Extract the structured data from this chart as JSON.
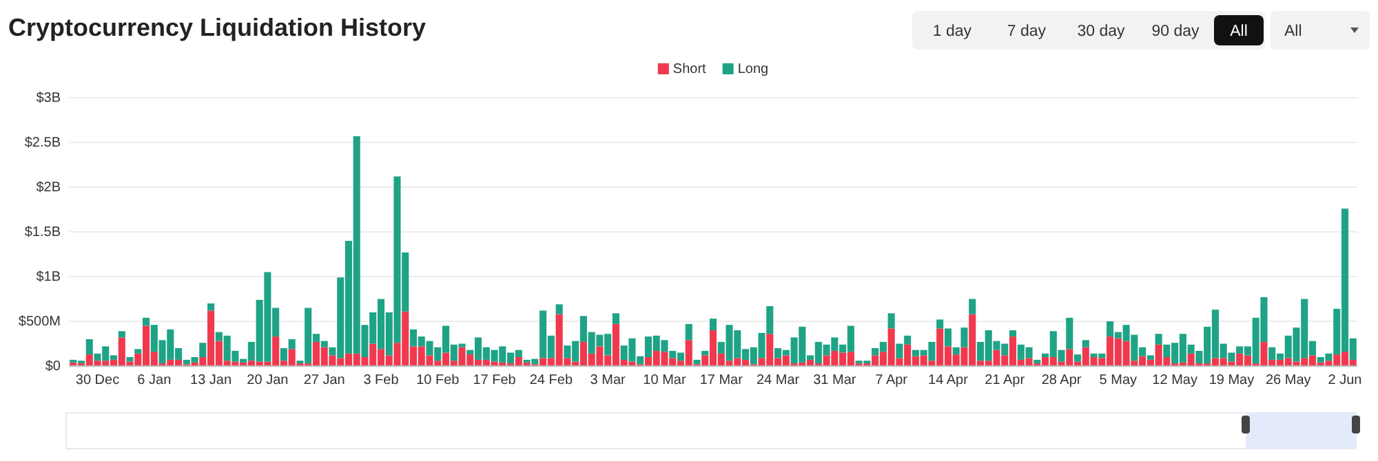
{
  "chart_data": {
    "type": "bar",
    "title": "Cryptocurrency Liquidation History",
    "stacked": true,
    "categories": [
      null,
      null,
      null,
      "30 Dec",
      null,
      null,
      null,
      null,
      null,
      null,
      "6 Jan",
      null,
      null,
      null,
      null,
      null,
      null,
      "13 Jan",
      null,
      null,
      null,
      null,
      null,
      null,
      "20 Jan",
      null,
      null,
      null,
      null,
      null,
      null,
      "27 Jan",
      null,
      null,
      null,
      null,
      null,
      null,
      "3 Feb",
      null,
      null,
      null,
      null,
      null,
      null,
      "10 Feb",
      null,
      null,
      null,
      null,
      null,
      null,
      "17 Feb",
      null,
      null,
      null,
      null,
      null,
      null,
      "24 Feb",
      null,
      null,
      null,
      null,
      null,
      null,
      "3 Mar",
      null,
      null,
      null,
      null,
      null,
      null,
      "10 Mar",
      null,
      null,
      null,
      null,
      null,
      null,
      "17 Mar",
      null,
      null,
      null,
      null,
      null,
      null,
      "24 Mar",
      null,
      null,
      null,
      null,
      null,
      null,
      "31 Mar",
      null,
      null,
      null,
      null,
      null,
      null,
      "7 Apr",
      null,
      null,
      null,
      null,
      null,
      null,
      "14 Apr",
      null,
      null,
      null,
      null,
      null,
      null,
      "21 Apr",
      null,
      null,
      null,
      null,
      null,
      null,
      "28 Apr",
      null,
      null,
      null,
      null,
      null,
      null,
      "5 May",
      null,
      null,
      null,
      null,
      null,
      null,
      "12 May",
      null,
      null,
      null,
      null,
      null,
      null,
      "19 May",
      null,
      null,
      null,
      null,
      null,
      null,
      "26 May",
      null,
      null,
      null,
      null,
      null,
      null,
      "2 Jun",
      null
    ],
    "series": [
      {
        "name": "Short",
        "color": "#f0394e",
        "values": [
          40000000.0,
          30000000.0,
          130000000.0,
          60000000.0,
          60000000.0,
          70000000.0,
          320000000.0,
          50000000.0,
          140000000.0,
          450000000.0,
          160000000.0,
          30000000.0,
          70000000.0,
          70000000.0,
          20000000.0,
          40000000.0,
          100000000.0,
          620000000.0,
          280000000.0,
          60000000.0,
          50000000.0,
          40000000.0,
          60000000.0,
          50000000.0,
          50000000.0,
          330000000.0,
          60000000.0,
          190000000.0,
          30000000.0,
          30000000.0,
          270000000.0,
          210000000.0,
          120000000.0,
          90000000.0,
          140000000.0,
          140000000.0,
          100000000.0,
          250000000.0,
          190000000.0,
          120000000.0,
          260000000.0,
          610000000.0,
          220000000.0,
          220000000.0,
          120000000.0,
          60000000.0,
          150000000.0,
          60000000.0,
          210000000.0,
          130000000.0,
          70000000.0,
          70000000.0,
          50000000.0,
          40000000.0,
          30000000.0,
          100000000.0,
          40000000.0,
          20000000.0,
          90000000.0,
          90000000.0,
          580000000.0,
          90000000.0,
          50000000.0,
          270000000.0,
          140000000.0,
          220000000.0,
          120000000.0,
          470000000.0,
          70000000.0,
          50000000.0,
          20000000.0,
          100000000.0,
          170000000.0,
          160000000.0,
          90000000.0,
          60000000.0,
          290000000.0,
          20000000.0,
          120000000.0,
          400000000.0,
          140000000.0,
          60000000.0,
          90000000.0,
          70000000.0,
          20000000.0,
          90000000.0,
          360000000.0,
          90000000.0,
          120000000.0,
          30000000.0,
          40000000.0,
          70000000.0,
          30000000.0,
          120000000.0,
          170000000.0,
          150000000.0,
          160000000.0,
          30000000.0,
          30000000.0,
          120000000.0,
          160000000.0,
          420000000.0,
          90000000.0,
          240000000.0,
          110000000.0,
          120000000.0,
          60000000.0,
          420000000.0,
          220000000.0,
          130000000.0,
          210000000.0,
          580000000.0,
          60000000.0,
          60000000.0,
          180000000.0,
          120000000.0,
          330000000.0,
          70000000.0,
          90000000.0,
          30000000.0,
          100000000.0,
          100000000.0,
          50000000.0,
          190000000.0,
          50000000.0,
          210000000.0,
          100000000.0,
          90000000.0,
          330000000.0,
          310000000.0,
          280000000.0,
          60000000.0,
          110000000.0,
          70000000.0,
          240000000.0,
          100000000.0,
          30000000.0,
          40000000.0,
          140000000.0,
          30000000.0,
          30000000.0,
          90000000.0,
          90000000.0,
          50000000.0,
          140000000.0,
          120000000.0,
          30000000.0,
          270000000.0,
          70000000.0,
          70000000.0,
          90000000.0,
          50000000.0,
          90000000.0,
          120000000.0,
          40000000.0,
          60000000.0,
          130000000.0,
          160000000.0,
          70000000.0
        ]
      },
      {
        "name": "Long",
        "color": "#1fa386",
        "values": [
          30000000.0,
          30000000.0,
          170000000.0,
          80000000.0,
          160000000.0,
          50000000.0,
          70000000.0,
          50000000.0,
          50000000.0,
          90000000.0,
          300000000.0,
          260000000.0,
          340000000.0,
          130000000.0,
          50000000.0,
          60000000.0,
          160000000.0,
          80000000.0,
          100000000.0,
          280000000.0,
          120000000.0,
          40000000.0,
          210000000.0,
          690000000.0,
          1000000000.0,
          320000000.0,
          140000000.0,
          110000000.0,
          30000000.0,
          620000000.0,
          90000000.0,
          70000000.0,
          90000000.0,
          900000000.0,
          1260000000.0,
          2430000000.0,
          360000000.0,
          350000000.0,
          560000000.0,
          480000000.0,
          1860000000.0,
          660000000.0,
          190000000.0,
          110000000.0,
          160000000.0,
          150000000.0,
          300000000.0,
          180000000.0,
          40000000.0,
          50000000.0,
          250000000.0,
          140000000.0,
          130000000.0,
          180000000.0,
          120000000.0,
          80000000.0,
          30000000.0,
          60000000.0,
          530000000.0,
          250000000.0,
          110000000.0,
          140000000.0,
          230000000.0,
          290000000.0,
          240000000.0,
          130000000.0,
          240000000.0,
          120000000.0,
          160000000.0,
          260000000.0,
          90000000.0,
          230000000.0,
          170000000.0,
          130000000.0,
          80000000.0,
          90000000.0,
          180000000.0,
          50000000.0,
          50000000.0,
          130000000.0,
          130000000.0,
          400000000.0,
          310000000.0,
          120000000.0,
          190000000.0,
          280000000.0,
          310000000.0,
          110000000.0,
          60000000.0,
          290000000.0,
          400000000.0,
          50000000.0,
          240000000.0,
          120000000.0,
          150000000.0,
          90000000.0,
          290000000.0,
          30000000.0,
          30000000.0,
          80000000.0,
          110000000.0,
          170000000.0,
          160000000.0,
          100000000.0,
          70000000.0,
          60000000.0,
          210000000.0,
          100000000.0,
          200000000.0,
          80000000.0,
          220000000.0,
          170000000.0,
          210000000.0,
          340000000.0,
          100000000.0,
          130000000.0,
          70000000.0,
          170000000.0,
          120000000.0,
          40000000.0,
          40000000.0,
          290000000.0,
          130000000.0,
          350000000.0,
          80000000.0,
          80000000.0,
          40000000.0,
          50000000.0,
          170000000.0,
          70000000.0,
          180000000.0,
          290000000.0,
          100000000.0,
          50000000.0,
          120000000.0,
          140000000.0,
          230000000.0,
          320000000.0,
          100000000.0,
          140000000.0,
          410000000.0,
          540000000.0,
          160000000.0,
          100000000.0,
          80000000.0,
          100000000.0,
          510000000.0,
          500000000.0,
          140000000.0,
          70000000.0,
          250000000.0,
          380000000.0,
          660000000.0,
          160000000.0,
          60000000.0,
          80000000.0,
          510000000.0,
          1600000000.0,
          240000000.0
        ]
      }
    ],
    "ylim": [
      0,
      3000000000.0
    ],
    "yticks": [
      {
        "value": 0,
        "label": "$0"
      },
      {
        "value": 500000000.0,
        "label": "$500M"
      },
      {
        "value": 1000000000.0,
        "label": "$1B"
      },
      {
        "value": 1500000000.0,
        "label": "$1.5B"
      },
      {
        "value": 2000000000.0,
        "label": "$2B"
      },
      {
        "value": 2500000000.0,
        "label": "$2.5B"
      },
      {
        "value": 3000000000.0,
        "label": "$3B"
      }
    ],
    "grid": "y",
    "legend": "top",
    "annotations": [
      "1 day",
      "7 day",
      "30 day",
      "90 day",
      "All",
      "All"
    ]
  }
}
